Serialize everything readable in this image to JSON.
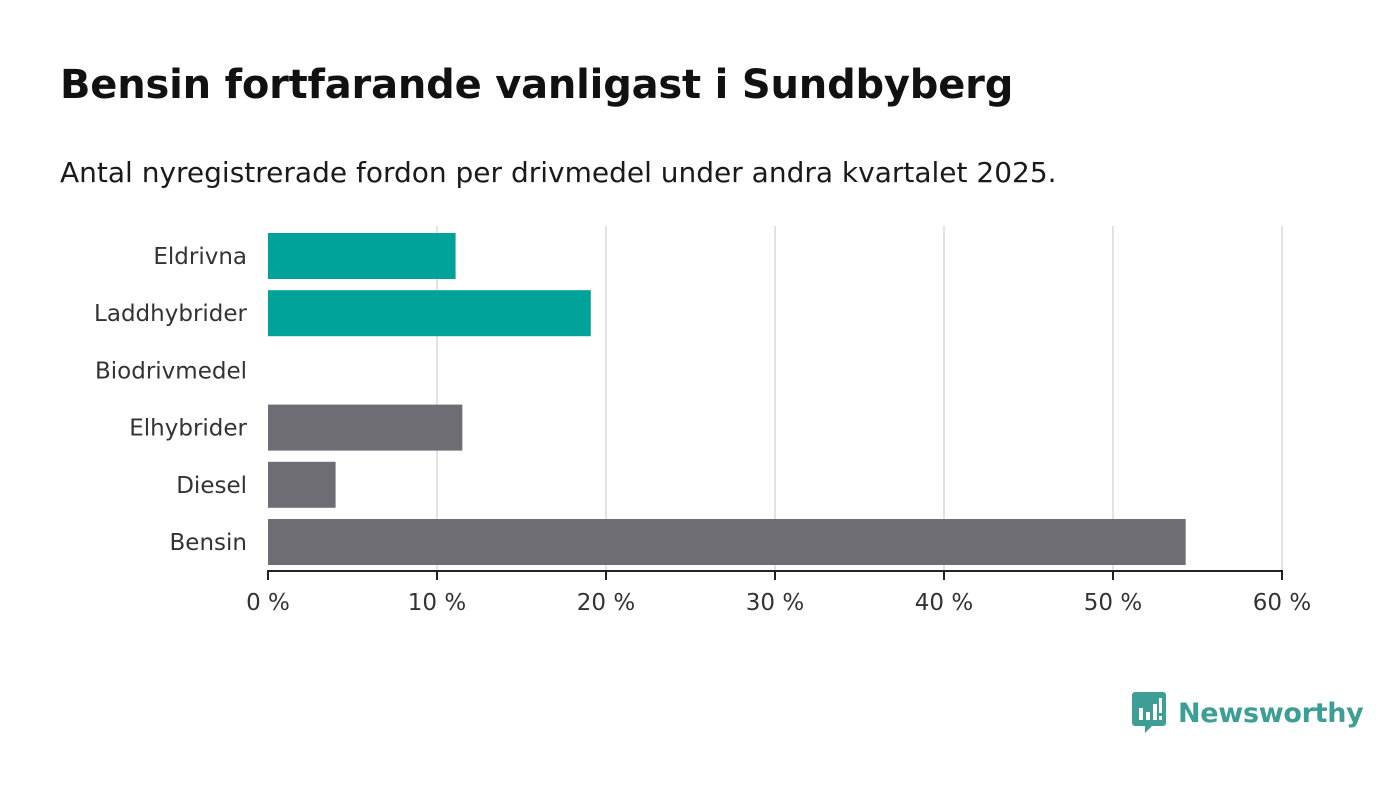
{
  "chart_data": {
    "type": "bar",
    "orientation": "horizontal",
    "title": "Bensin fortfarande vanligast i Sundbyberg",
    "subtitle": "Antal nyregistrerade fordon per drivmedel under andra kvartalet 2025.",
    "categories": [
      "Eldrivna",
      "Laddhybrider",
      "Biodrivmedel",
      "Elhybrider",
      "Diesel",
      "Bensin"
    ],
    "values": [
      11.1,
      19.1,
      0,
      11.5,
      4.0,
      54.3
    ],
    "bar_colors": [
      "#00a39a",
      "#00a39a",
      "#00a39a",
      "#6e6d74",
      "#6e6d74",
      "#6e6d74"
    ],
    "xlim": [
      0,
      60
    ],
    "x_ticks": [
      0,
      10,
      20,
      30,
      40,
      50,
      60
    ],
    "x_tick_labels": [
      "0 %",
      "10 %",
      "20 %",
      "30 %",
      "40 %",
      "50 %",
      "60 %"
    ],
    "xlabel": "",
    "ylabel": "",
    "grid": true
  },
  "branding": {
    "logo_text": "Newsworthy",
    "logo_icon": "newsworthy-chart-icon",
    "logo_color": "#3d9e95"
  }
}
